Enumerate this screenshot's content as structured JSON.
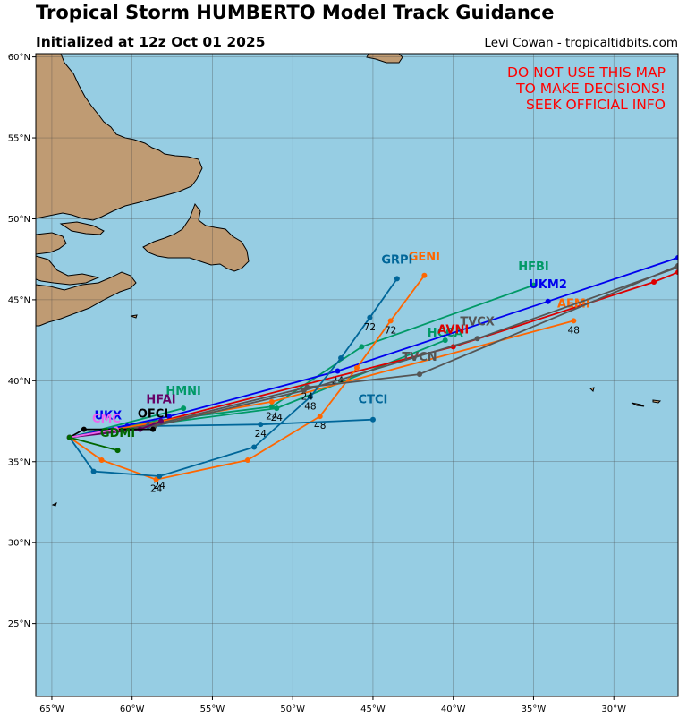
{
  "header": {
    "title": "Tropical Storm HUMBERTO Model Track Guidance",
    "subtitle": "Initialized at 12z Oct 01 2025",
    "credit": "Levi Cowan - tropicaltidbits.com"
  },
  "warning": [
    "DO NOT USE THIS MAP",
    "TO MAKE DECISIONS!",
    "SEEK OFFICIAL INFO"
  ],
  "colors": {
    "ocean": "#96cde3",
    "land": "#bf9b73",
    "grid": "#444444",
    "warning": "#ff0000"
  },
  "map": {
    "lon_range": [
      -66,
      -26
    ],
    "lat_range": [
      20.5,
      60.2
    ],
    "lon_ticks": [
      {
        "value": -65,
        "label": "65°W"
      },
      {
        "value": -60,
        "label": "60°W"
      },
      {
        "value": -55,
        "label": "55°W"
      },
      {
        "value": -50,
        "label": "50°W"
      },
      {
        "value": -45,
        "label": "45°W"
      },
      {
        "value": -40,
        "label": "40°W"
      },
      {
        "value": -35,
        "label": "35°W"
      },
      {
        "value": -30,
        "label": "30°W"
      }
    ],
    "lat_ticks": [
      {
        "value": 25,
        "label": "25°N"
      },
      {
        "value": 30,
        "label": "30°N"
      },
      {
        "value": 35,
        "label": "35°N"
      },
      {
        "value": 40,
        "label": "40°N"
      },
      {
        "value": 45,
        "label": "45°N"
      },
      {
        "value": 50,
        "label": "50°N"
      },
      {
        "value": 55,
        "label": "55°N"
      },
      {
        "value": 60,
        "label": "60°N"
      }
    ]
  },
  "chart_data": {
    "type": "map-tracks",
    "tracks": [
      {
        "name": "HFBI",
        "color": "#009966",
        "points": [
          [
            -63.9,
            36.5
          ],
          [
            -58.6,
            37.5
          ],
          [
            -51.3,
            38.4
          ],
          [
            -45.7,
            42.1
          ],
          [
            -35.0,
            45.9
          ]
        ],
        "labels": [
          {
            "text": "24",
            "lon": -51.3,
            "lat": 38.4
          }
        ],
        "name_at": [
          -35.0,
          46.6
        ]
      },
      {
        "name": "HMNI",
        "color": "#009966",
        "points": [
          [
            -63.9,
            36.5
          ],
          [
            -56.8,
            38.3
          ]
        ],
        "labels": [],
        "name_at": [
          -56.8,
          38.9
        ]
      },
      {
        "name": "HCCA",
        "color": "#009966",
        "points": [
          [
            -63.9,
            36.5
          ],
          [
            -58.8,
            37.3
          ],
          [
            -51.0,
            38.3
          ],
          [
            -40.5,
            42.5
          ]
        ],
        "labels": [
          {
            "text": "24",
            "lon": -51.0,
            "lat": 38.3
          }
        ],
        "name_at": [
          -40.5,
          42.5
        ]
      },
      {
        "name": "UKM2",
        "color": "#0000ee",
        "points": [
          [
            -63.9,
            36.5
          ],
          [
            -57.7,
            37.8
          ],
          [
            -47.2,
            40.6
          ],
          [
            -34.1,
            44.9
          ],
          [
            -26,
            47.6
          ]
        ],
        "labels": [
          {
            "text": "24",
            "lon": -47.2,
            "lat": 40.6
          }
        ],
        "name_at": [
          -34.1,
          45.5
        ]
      },
      {
        "name": "UKX",
        "color": "#0000ee",
        "points": [
          [
            -63.9,
            36.5
          ],
          [
            -60.3,
            37.2
          ]
        ],
        "labels": [],
        "name_at": [
          -61.5,
          37.4
        ]
      },
      {
        "name": "AVNI",
        "color": "#dd0000",
        "points": [
          [
            -63.9,
            36.5
          ],
          [
            -59.0,
            37.3
          ],
          [
            -40.0,
            42.1
          ],
          [
            -27.5,
            46.1
          ],
          [
            -26,
            46.7
          ]
        ],
        "labels": [],
        "name_at": [
          -40.0,
          42.7
        ]
      },
      {
        "name": "AEMI",
        "color": "#ff6600",
        "points": [
          [
            -63.9,
            36.5
          ],
          [
            -51.3,
            38.7
          ],
          [
            -32.5,
            43.7
          ]
        ],
        "labels": [
          {
            "text": "48",
            "lon": -32.5,
            "lat": 43.7
          }
        ],
        "name_at": [
          -32.5,
          44.3
        ]
      },
      {
        "name": "GENI",
        "color": "#ff6600",
        "points": [
          [
            -63.9,
            36.5
          ],
          [
            -61.9,
            35.1
          ],
          [
            -58.5,
            33.9
          ],
          [
            -52.8,
            35.1
          ],
          [
            -48.3,
            37.8
          ],
          [
            -46.0,
            40.8
          ],
          [
            -43.9,
            43.7
          ],
          [
            -41.8,
            46.5
          ]
        ],
        "labels": [
          {
            "text": "24",
            "lon": -58.5,
            "lat": 33.9
          },
          {
            "text": "48",
            "lon": -48.3,
            "lat": 37.8
          },
          {
            "text": "72",
            "lon": -43.9,
            "lat": 43.7
          }
        ],
        "name_at": [
          -41.8,
          47.2
        ]
      },
      {
        "name": "GRPI",
        "color": "#006699",
        "points": [
          [
            -63.9,
            36.5
          ],
          [
            -62.4,
            34.4
          ],
          [
            -58.3,
            34.1
          ],
          [
            -52.4,
            35.9
          ],
          [
            -48.9,
            39.0
          ],
          [
            -47.0,
            41.4
          ],
          [
            -45.2,
            43.9
          ],
          [
            -43.5,
            46.3
          ]
        ],
        "labels": [
          {
            "text": "24",
            "lon": -58.3,
            "lat": 34.1
          },
          {
            "text": "48",
            "lon": -48.9,
            "lat": 39.0
          },
          {
            "text": "72",
            "lon": -45.2,
            "lat": 43.9
          }
        ],
        "name_at": [
          -43.5,
          47.0
        ]
      },
      {
        "name": "CTCI",
        "color": "#006699",
        "points": [
          [
            -63.9,
            36.5
          ],
          [
            -59.0,
            37.2
          ],
          [
            -52.0,
            37.3
          ],
          [
            -45.0,
            37.6
          ]
        ],
        "labels": [
          {
            "text": "24",
            "lon": -52.0,
            "lat": 37.3
          }
        ],
        "name_at": [
          -45.0,
          38.4
        ]
      },
      {
        "name": "TVCN",
        "color": "#555555",
        "points": [
          [
            -63.9,
            36.5
          ],
          [
            -58.6,
            37.3
          ],
          [
            -49.1,
            39.6
          ],
          [
            -42.1,
            40.4
          ],
          [
            -26,
            47.1
          ]
        ],
        "labels": [
          {
            "text": "24",
            "lon": -49.1,
            "lat": 39.6
          }
        ],
        "name_at": [
          -42.1,
          41.0
        ]
      },
      {
        "name": "TVCX",
        "color": "#555555",
        "points": [
          [
            -63.9,
            36.5
          ],
          [
            -58.6,
            37.2
          ],
          [
            -49.3,
            39.4
          ],
          [
            -38.5,
            42.6
          ],
          [
            -26,
            47.0
          ]
        ],
        "labels": [],
        "name_at": [
          -38.5,
          43.2
        ]
      },
      {
        "name": "HFAI",
        "color": "#660066",
        "points": [
          [
            -63.9,
            36.5
          ],
          [
            -59.5,
            37.0
          ],
          [
            -58.2,
            37.5
          ]
        ],
        "labels": [],
        "name_at": [
          -58.2,
          38.4
        ]
      },
      {
        "name": "OFCI",
        "color": "#000000",
        "points": [
          [
            -63.9,
            36.5
          ],
          [
            -63.0,
            37.0
          ],
          [
            -58.7,
            37.0
          ]
        ],
        "labels": [],
        "name_at": [
          -58.7,
          37.5
        ]
      },
      {
        "name": "CMC",
        "color": "#ee66ee",
        "points": [
          [
            -63.9,
            36.5
          ],
          [
            -61.0,
            37.0
          ]
        ],
        "labels": [],
        "name_at": [
          -61.6,
          37.2
        ]
      },
      {
        "name": "GDMI",
        "color": "#006600",
        "points": [
          [
            -63.9,
            36.5
          ],
          [
            -60.9,
            35.7
          ]
        ],
        "labels": [],
        "name_at": [
          -60.9,
          36.3
        ]
      }
    ]
  }
}
